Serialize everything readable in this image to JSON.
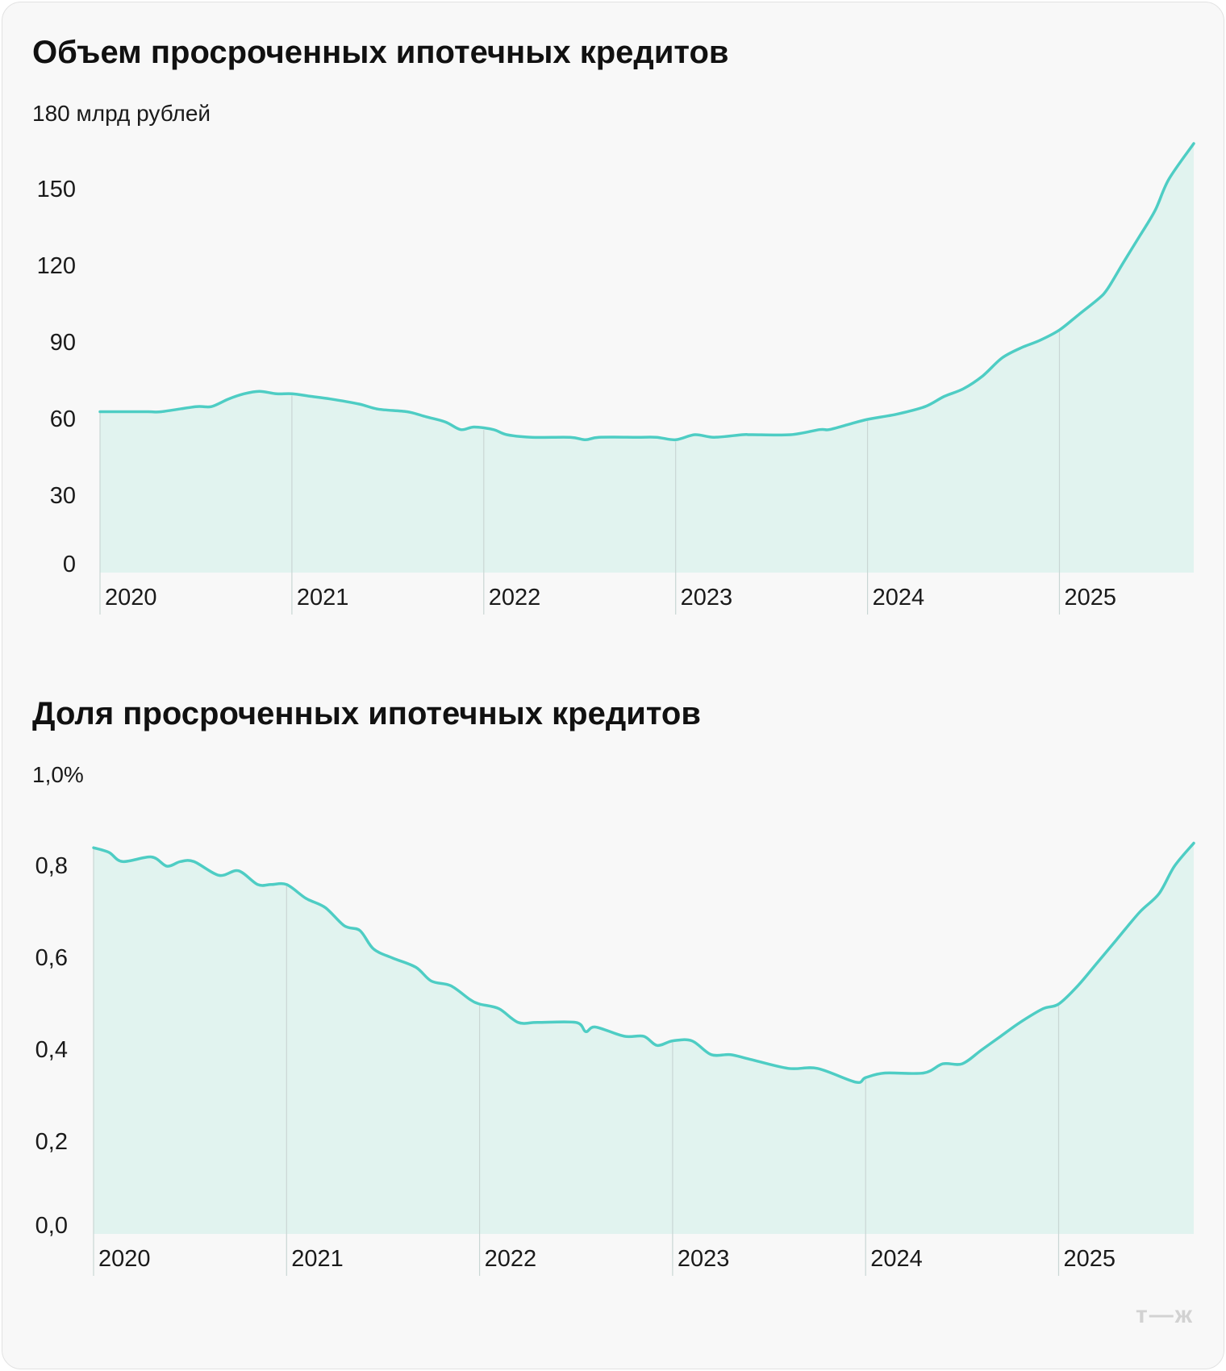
{
  "brand": {
    "logo_text": "т—ж",
    "colors": {
      "line": "#4ecdc4",
      "area": "#e1f3ef",
      "grid": "#c9d6d4"
    }
  },
  "chart_data": [
    {
      "type": "area",
      "title": "Объем просроченных ипотечных кредитов",
      "y_unit_label": "180 млрд рублей",
      "ylim": [
        0,
        180
      ],
      "yticks": [
        0,
        30,
        60,
        90,
        120,
        150,
        180
      ],
      "ytick_labels": [
        "0",
        "30",
        "60",
        "90",
        "120",
        "150"
      ],
      "xlim": [
        2020.0,
        2025.7
      ],
      "xticks": [
        2020,
        2021,
        2022,
        2023,
        2024,
        2025
      ],
      "xtick_labels": [
        "2020",
        "2021",
        "2022",
        "2023",
        "2024",
        "2025"
      ],
      "grid": "vertical at year starts",
      "x": [
        2020.0,
        2020.25,
        2020.32,
        2020.5,
        2020.58,
        2020.67,
        2020.75,
        2020.83,
        2020.92,
        2021.0,
        2021.1,
        2021.2,
        2021.35,
        2021.45,
        2021.6,
        2021.7,
        2021.8,
        2021.88,
        2021.95,
        2022.05,
        2022.12,
        2022.25,
        2022.45,
        2022.53,
        2022.6,
        2022.8,
        2022.9,
        2023.0,
        2023.1,
        2023.2,
        2023.35,
        2023.4,
        2023.6,
        2023.75,
        2023.8,
        2023.9,
        2024.0,
        2024.15,
        2024.3,
        2024.4,
        2024.5,
        2024.6,
        2024.7,
        2024.8,
        2024.9,
        2025.0,
        2025.1,
        2025.2,
        2025.25,
        2025.33,
        2025.42,
        2025.5,
        2025.57,
        2025.7
      ],
      "values": [
        63,
        63,
        63,
        65,
        65,
        68,
        70,
        71,
        70,
        70,
        69,
        68,
        66,
        64,
        63,
        61,
        59,
        56,
        57,
        56,
        54,
        53,
        53,
        52,
        53,
        53,
        53,
        52,
        54,
        53,
        54,
        54,
        54,
        56,
        56,
        58,
        60,
        62,
        65,
        69,
        72,
        77,
        84,
        88,
        91,
        95,
        101,
        107,
        111,
        121,
        132,
        142,
        154,
        168
      ]
    },
    {
      "type": "area",
      "title": "Доля просроченных ипотечных кредитов",
      "y_unit_label": "1,0%",
      "ylim": [
        0.0,
        1.0
      ],
      "yticks": [
        0.0,
        0.2,
        0.4,
        0.6,
        0.8,
        1.0
      ],
      "ytick_labels": [
        "0,0",
        "0,2",
        "0,4",
        "0,6",
        "0,8"
      ],
      "xlim": [
        2020.0,
        2025.7
      ],
      "xticks": [
        2020,
        2021,
        2022,
        2023,
        2024,
        2025
      ],
      "xtick_labels": [
        "2020",
        "2021",
        "2022",
        "2023",
        "2024",
        "2025"
      ],
      "grid": "vertical at year starts",
      "x": [
        2020.0,
        2020.08,
        2020.15,
        2020.3,
        2020.38,
        2020.45,
        2020.52,
        2020.65,
        2020.75,
        2020.85,
        2020.92,
        2021.0,
        2021.1,
        2021.2,
        2021.3,
        2021.38,
        2021.45,
        2021.55,
        2021.67,
        2021.75,
        2021.85,
        2021.95,
        2022.0,
        2022.1,
        2022.2,
        2022.3,
        2022.5,
        2022.55,
        2022.6,
        2022.75,
        2022.85,
        2022.92,
        2023.0,
        2023.1,
        2023.2,
        2023.3,
        2023.4,
        2023.6,
        2023.75,
        2023.95,
        2024.0,
        2024.1,
        2024.3,
        2024.4,
        2024.5,
        2024.6,
        2024.7,
        2024.8,
        2024.92,
        2025.0,
        2025.1,
        2025.2,
        2025.3,
        2025.42,
        2025.52,
        2025.6,
        2025.7
      ],
      "values": [
        0.84,
        0.83,
        0.81,
        0.82,
        0.8,
        0.81,
        0.81,
        0.78,
        0.79,
        0.76,
        0.76,
        0.76,
        0.73,
        0.71,
        0.67,
        0.66,
        0.62,
        0.6,
        0.58,
        0.55,
        0.54,
        0.51,
        0.5,
        0.49,
        0.46,
        0.46,
        0.46,
        0.44,
        0.45,
        0.43,
        0.43,
        0.41,
        0.42,
        0.42,
        0.39,
        0.39,
        0.38,
        0.36,
        0.36,
        0.33,
        0.34,
        0.35,
        0.35,
        0.37,
        0.37,
        0.4,
        0.43,
        0.46,
        0.49,
        0.5,
        0.54,
        0.59,
        0.64,
        0.7,
        0.74,
        0.8,
        0.85
      ]
    }
  ]
}
